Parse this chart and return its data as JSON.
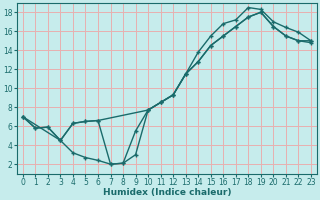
{
  "xlabel": "Humidex (Indice chaleur)",
  "xlim": [
    -0.5,
    23.5
  ],
  "ylim": [
    1,
    19
  ],
  "xticks": [
    0,
    1,
    2,
    3,
    4,
    5,
    6,
    7,
    8,
    9,
    10,
    11,
    12,
    13,
    14,
    15,
    16,
    17,
    18,
    19,
    20,
    21,
    22,
    23
  ],
  "yticks": [
    2,
    4,
    6,
    8,
    10,
    12,
    14,
    16,
    18
  ],
  "bg_color": "#c6ecec",
  "grid_color": "#e8b0b0",
  "line_color": "#1a6b6b",
  "line1_x": [
    0,
    1,
    2,
    3,
    4,
    5,
    6,
    7,
    8,
    9,
    10,
    11,
    12,
    13,
    14,
    15,
    16,
    17,
    18,
    19,
    20,
    21,
    22,
    23
  ],
  "line1_y": [
    7,
    5.8,
    5.9,
    4.5,
    3.2,
    2.7,
    2.4,
    2.0,
    2.1,
    3.0,
    7.7,
    8.5,
    9.3,
    11.5,
    13.8,
    15.5,
    16.8,
    17.2,
    18.5,
    18.3,
    17.0,
    16.4,
    15.9,
    15.0
  ],
  "line2_x": [
    0,
    1,
    2,
    3,
    4,
    5,
    6,
    7,
    8,
    9,
    10,
    11,
    12,
    13,
    14,
    15,
    16,
    17,
    18,
    19,
    20,
    21,
    22,
    23
  ],
  "line2_y": [
    7,
    5.8,
    5.9,
    4.5,
    6.3,
    6.5,
    6.6,
    2.0,
    2.1,
    5.5,
    7.7,
    8.5,
    9.3,
    11.5,
    12.8,
    14.5,
    15.5,
    16.5,
    17.5,
    18.0,
    16.5,
    15.5,
    15.0,
    14.8
  ],
  "line3_x": [
    0,
    3,
    4,
    5,
    6,
    10,
    11,
    12,
    13,
    14,
    15,
    16,
    17,
    18,
    19,
    20,
    21,
    22,
    23
  ],
  "line3_y": [
    7,
    4.5,
    6.3,
    6.5,
    6.6,
    7.7,
    8.5,
    9.3,
    11.5,
    12.8,
    14.5,
    15.5,
    16.5,
    17.5,
    18.0,
    16.5,
    15.5,
    15.0,
    15.0
  ]
}
